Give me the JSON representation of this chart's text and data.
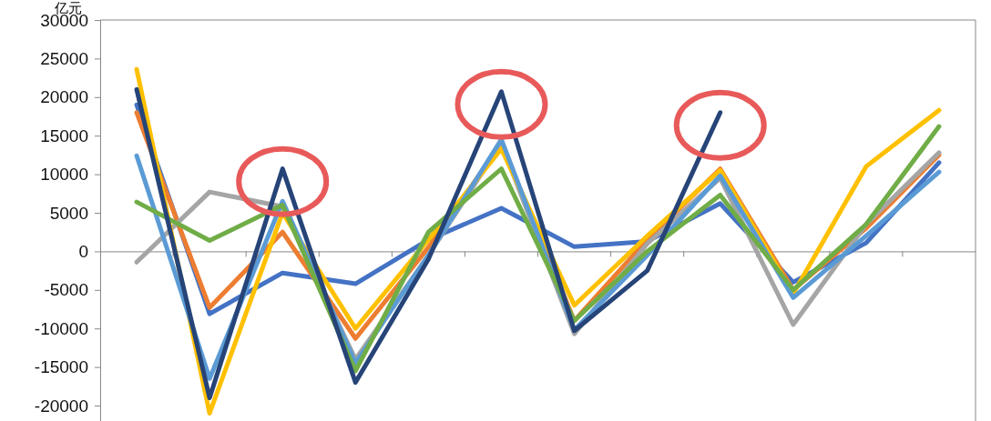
{
  "chart_data": {
    "type": "line",
    "ylabel": "亿元",
    "categories": [
      null,
      null,
      null,
      null,
      null,
      null,
      null,
      null,
      null,
      null,
      null,
      null
    ],
    "ylim": [
      -22000,
      30000
    ],
    "yticks": [
      -20000,
      -15000,
      -10000,
      -5000,
      0,
      5000,
      10000,
      15000,
      20000,
      25000,
      30000
    ],
    "marker": "none",
    "line_style": "solid",
    "series": [
      {
        "color": "#4472c4",
        "values": [
          19000,
          -8100,
          -2800,
          -4200,
          1500,
          5600,
          600,
          1300,
          6200,
          -4000,
          1100,
          11500
        ]
      },
      {
        "color": "#ed7d31",
        "values": [
          18000,
          -7300,
          2500,
          -11300,
          500,
          14000,
          -9000,
          1500,
          10700,
          -5000,
          3000,
          12500
        ]
      },
      {
        "color": "#a5a5a5",
        "values": [
          -1400,
          7700,
          5800,
          -14000,
          -500,
          14000,
          -10700,
          1000,
          9500,
          -9500,
          3500,
          12800
        ]
      },
      {
        "color": "#ffc000",
        "values": [
          23600,
          -21000,
          5000,
          -10000,
          1500,
          13300,
          -7000,
          2000,
          10500,
          -5500,
          11000,
          18300
        ]
      },
      {
        "color": "#5b9bd5",
        "values": [
          12400,
          -16500,
          6500,
          -14500,
          -500,
          14500,
          -10200,
          -500,
          9800,
          -6000,
          2000,
          10300
        ]
      },
      {
        "color": "#70ad47",
        "values": [
          6400,
          1400,
          6000,
          -15500,
          2500,
          10700,
          -9000,
          0,
          7300,
          -5000,
          3500,
          16200
        ]
      },
      {
        "color": "#264478",
        "values": [
          21000,
          -19000,
          10700,
          -17000,
          -1000,
          20700,
          -10300,
          -2500,
          18000,
          null,
          null,
          null
        ]
      }
    ]
  }
}
